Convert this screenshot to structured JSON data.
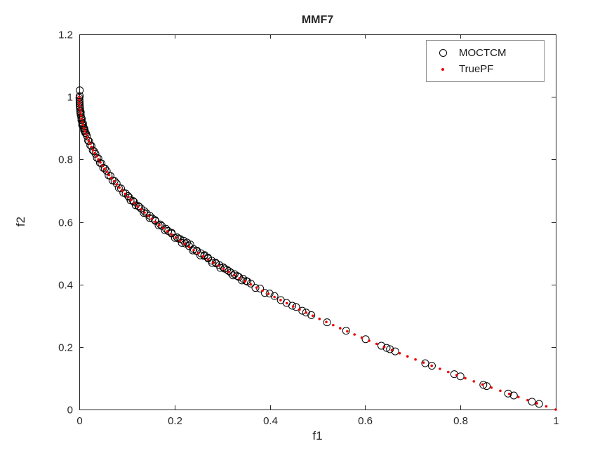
{
  "chart_data": {
    "type": "scatter",
    "title": "MMF7",
    "xlabel": "f1",
    "ylabel": "f2",
    "xlim": [
      0,
      1
    ],
    "ylim": [
      0,
      1.2
    ],
    "grid": false,
    "axis_color": "#262626",
    "xticks": {
      "values": [
        0,
        0.2,
        0.4,
        0.6,
        0.8,
        1
      ],
      "labels": [
        "0",
        "0.2",
        "0.4",
        "0.6",
        "0.8",
        "1"
      ]
    },
    "yticks": {
      "values": [
        0,
        0.2,
        0.4,
        0.6,
        0.8,
        1,
        1.2
      ],
      "labels": [
        "0",
        "0.2",
        "0.4",
        "0.6",
        "0.8",
        "1",
        "1.2"
      ]
    },
    "legend": {
      "position": "northeast"
    },
    "series": [
      {
        "name": "MOCTCM",
        "marker": "open-circle",
        "color": "#000000",
        "marker_size": 5,
        "points": [
          [
            0.001,
            1.021
          ],
          [
            0.001,
            1.003
          ],
          [
            0.0003,
            0.997
          ],
          [
            0.0006,
            0.984
          ],
          [
            0.001,
            0.972
          ],
          [
            0.0016,
            0.962
          ],
          [
            0.0023,
            0.948
          ],
          [
            0.0031,
            0.951
          ],
          [
            0.0041,
            0.934
          ],
          [
            0.0052,
            0.93
          ],
          [
            0.0064,
            0.917
          ],
          [
            0.0077,
            0.915
          ],
          [
            0.0092,
            0.901
          ],
          [
            0.0108,
            0.898
          ],
          [
            0.0125,
            0.885
          ],
          [
            0.0144,
            0.882
          ],
          [
            0.0164,
            0.874
          ],
          [
            0.0185,
            0.86
          ],
          [
            0.0207,
            0.858
          ],
          [
            0.0231,
            0.845
          ],
          [
            0.0256,
            0.843
          ],
          [
            0.0282,
            0.829
          ],
          [
            0.031,
            0.826
          ],
          [
            0.0339,
            0.818
          ],
          [
            0.0369,
            0.805
          ],
          [
            0.04,
            0.803
          ],
          [
            0.0433,
            0.789
          ],
          [
            0.0467,
            0.787
          ],
          [
            0.0502,
            0.773
          ],
          [
            0.0538,
            0.771
          ],
          [
            0.0576,
            0.763
          ],
          [
            0.0615,
            0.749
          ],
          [
            0.0655,
            0.747
          ],
          [
            0.0697,
            0.733
          ],
          [
            0.074,
            0.731
          ],
          [
            0.0784,
            0.723
          ],
          [
            0.0829,
            0.709
          ],
          [
            0.0876,
            0.707
          ],
          [
            0.0924,
            0.693
          ],
          [
            0.0973,
            0.691
          ],
          [
            0.1024,
            0.683
          ],
          [
            0.1076,
            0.669
          ],
          [
            0.1129,
            0.667
          ],
          [
            0.1183,
            0.653
          ],
          [
            0.1239,
            0.651
          ],
          [
            0.1296,
            0.643
          ],
          [
            0.1354,
            0.629
          ],
          [
            0.1414,
            0.627
          ],
          [
            0.1475,
            0.613
          ],
          [
            0.1537,
            0.611
          ],
          [
            0.16,
            0.603
          ],
          [
            0.1665,
            0.589
          ],
          [
            0.1731,
            0.587
          ],
          [
            0.1798,
            0.573
          ],
          [
            0.1866,
            0.571
          ],
          [
            0.1936,
            0.563
          ],
          [
            0.2007,
            0.549
          ],
          [
            0.2079,
            0.547
          ],
          [
            0.2152,
            0.533
          ],
          [
            0.2226,
            0.531
          ],
          [
            0.2304,
            0.523
          ],
          [
            0.2381,
            0.509
          ],
          [
            0.246,
            0.507
          ],
          [
            0.254,
            0.493
          ],
          [
            0.2621,
            0.491
          ],
          [
            0.2704,
            0.483
          ],
          [
            0.2788,
            0.469
          ],
          [
            0.2873,
            0.467
          ],
          [
            0.2959,
            0.453
          ],
          [
            0.3047,
            0.451
          ],
          [
            0.3136,
            0.443
          ],
          [
            0.3226,
            0.429
          ],
          [
            0.3318,
            0.427
          ],
          [
            0.3411,
            0.413
          ],
          [
            0.3505,
            0.411
          ],
          [
            0.36,
            0.403
          ],
          [
            0.3697,
            0.389
          ],
          [
            0.3795,
            0.387
          ],
          [
            0.3894,
            0.373
          ],
          [
            0.3994,
            0.371
          ],
          [
            0.4096,
            0.363
          ],
          [
            0.0005,
            0.99
          ],
          [
            0.0008,
            0.978
          ],
          [
            0.0012,
            0.967
          ],
          [
            0.002,
            0.955
          ],
          [
            0.003,
            0.942
          ],
          [
            0.0045,
            0.925
          ],
          [
            0.006,
            0.91
          ],
          [
            0.008,
            0.908
          ],
          [
            0.01,
            0.893
          ],
          [
            0.012,
            0.89
          ],
          [
            0.105,
            0.678
          ],
          [
            0.115,
            0.664
          ],
          [
            0.126,
            0.648
          ],
          [
            0.137,
            0.634
          ],
          [
            0.148,
            0.62
          ],
          [
            0.159,
            0.606
          ],
          [
            0.17,
            0.592
          ],
          [
            0.182,
            0.578
          ],
          [
            0.194,
            0.565
          ],
          [
            0.205,
            0.551
          ],
          [
            0.212,
            0.545
          ],
          [
            0.219,
            0.54
          ],
          [
            0.226,
            0.534
          ],
          [
            0.233,
            0.528
          ],
          [
            0.24,
            0.513
          ],
          [
            0.247,
            0.508
          ],
          [
            0.255,
            0.5
          ],
          [
            0.263,
            0.494
          ],
          [
            0.27,
            0.486
          ],
          [
            0.278,
            0.476
          ],
          [
            0.286,
            0.47
          ],
          [
            0.294,
            0.462
          ],
          [
            0.302,
            0.455
          ],
          [
            0.31,
            0.447
          ],
          [
            0.318,
            0.438
          ],
          [
            0.326,
            0.433
          ],
          [
            0.335,
            0.424
          ],
          [
            0.344,
            0.418
          ],
          [
            0.353,
            0.409
          ],
          [
            0.423,
            0.35
          ],
          [
            0.435,
            0.341
          ],
          [
            0.447,
            0.332
          ],
          [
            0.455,
            0.328
          ],
          [
            0.468,
            0.316
          ],
          [
            0.476,
            0.31
          ],
          [
            0.487,
            0.302
          ],
          [
            0.52,
            0.279
          ],
          [
            0.56,
            0.252
          ],
          [
            0.601,
            0.225
          ],
          [
            0.634,
            0.204
          ],
          [
            0.645,
            0.197
          ],
          [
            0.652,
            0.193
          ],
          [
            0.663,
            0.186
          ],
          [
            0.726,
            0.148
          ],
          [
            0.74,
            0.14
          ],
          [
            0.787,
            0.113
          ],
          [
            0.8,
            0.106
          ],
          [
            0.848,
            0.079
          ],
          [
            0.855,
            0.075
          ],
          [
            0.9,
            0.051
          ],
          [
            0.912,
            0.045
          ],
          [
            0.95,
            0.025
          ],
          [
            0.965,
            0.018
          ]
        ]
      },
      {
        "name": "TruePF",
        "marker": "dot",
        "color": "#ee0000",
        "marker_size": 1.8,
        "points": [
          [
            0,
            1
          ],
          [
            0.0001,
            0.99
          ],
          [
            0.0004,
            0.98
          ],
          [
            0.0009,
            0.97
          ],
          [
            0.0016,
            0.96
          ],
          [
            0.0025,
            0.95
          ],
          [
            0.0036,
            0.94
          ],
          [
            0.0049,
            0.93
          ],
          [
            0.0064,
            0.92
          ],
          [
            0.0081,
            0.91
          ],
          [
            0.01,
            0.9
          ],
          [
            0.0121,
            0.89
          ],
          [
            0.0144,
            0.88
          ],
          [
            0.0169,
            0.87
          ],
          [
            0.0196,
            0.86
          ],
          [
            0.0225,
            0.85
          ],
          [
            0.0256,
            0.84
          ],
          [
            0.0289,
            0.83
          ],
          [
            0.0324,
            0.82
          ],
          [
            0.0361,
            0.81
          ],
          [
            0.04,
            0.8
          ],
          [
            0.0441,
            0.79
          ],
          [
            0.0484,
            0.78
          ],
          [
            0.0529,
            0.77
          ],
          [
            0.0576,
            0.76
          ],
          [
            0.0625,
            0.75
          ],
          [
            0.0676,
            0.74
          ],
          [
            0.0729,
            0.73
          ],
          [
            0.0784,
            0.72
          ],
          [
            0.0841,
            0.71
          ],
          [
            0.09,
            0.7
          ],
          [
            0.0961,
            0.69
          ],
          [
            0.1024,
            0.68
          ],
          [
            0.1089,
            0.67
          ],
          [
            0.1156,
            0.66
          ],
          [
            0.1225,
            0.65
          ],
          [
            0.1296,
            0.64
          ],
          [
            0.1369,
            0.63
          ],
          [
            0.1444,
            0.62
          ],
          [
            0.1521,
            0.61
          ],
          [
            0.16,
            0.6
          ],
          [
            0.1681,
            0.59
          ],
          [
            0.1764,
            0.58
          ],
          [
            0.1849,
            0.57
          ],
          [
            0.1936,
            0.56
          ],
          [
            0.2025,
            0.55
          ],
          [
            0.2116,
            0.54
          ],
          [
            0.2209,
            0.53
          ],
          [
            0.2304,
            0.52
          ],
          [
            0.2401,
            0.51
          ],
          [
            0.25,
            0.5
          ],
          [
            0.2601,
            0.49
          ],
          [
            0.2704,
            0.48
          ],
          [
            0.2809,
            0.47
          ],
          [
            0.2916,
            0.46
          ],
          [
            0.3025,
            0.45
          ],
          [
            0.3136,
            0.44
          ],
          [
            0.3249,
            0.43
          ],
          [
            0.3364,
            0.42
          ],
          [
            0.3481,
            0.41
          ],
          [
            0.36,
            0.4
          ],
          [
            0.3721,
            0.39
          ],
          [
            0.3844,
            0.38
          ],
          [
            0.3969,
            0.37
          ],
          [
            0.4096,
            0.36
          ],
          [
            0.4225,
            0.35
          ],
          [
            0.4356,
            0.34
          ],
          [
            0.4489,
            0.33
          ],
          [
            0.4624,
            0.32
          ],
          [
            0.4761,
            0.31
          ],
          [
            0.49,
            0.3
          ],
          [
            0.5041,
            0.29
          ],
          [
            0.5184,
            0.28
          ],
          [
            0.5329,
            0.27
          ],
          [
            0.5476,
            0.26
          ],
          [
            0.5625,
            0.25
          ],
          [
            0.5776,
            0.24
          ],
          [
            0.5929,
            0.23
          ],
          [
            0.6084,
            0.22
          ],
          [
            0.6241,
            0.21
          ],
          [
            0.64,
            0.2
          ],
          [
            0.6561,
            0.19
          ],
          [
            0.6724,
            0.18
          ],
          [
            0.6889,
            0.17
          ],
          [
            0.7056,
            0.16
          ],
          [
            0.7225,
            0.15
          ],
          [
            0.7396,
            0.14
          ],
          [
            0.7569,
            0.13
          ],
          [
            0.7744,
            0.12
          ],
          [
            0.7921,
            0.11
          ],
          [
            0.81,
            0.1
          ],
          [
            0.8281,
            0.09
          ],
          [
            0.8464,
            0.08
          ],
          [
            0.8649,
            0.07
          ],
          [
            0.8836,
            0.06
          ],
          [
            0.9025,
            0.05
          ],
          [
            0.9216,
            0.04
          ],
          [
            0.9409,
            0.03
          ],
          [
            0.9604,
            0.02
          ],
          [
            0.9801,
            0.01
          ],
          [
            1,
            0
          ]
        ]
      }
    ]
  }
}
